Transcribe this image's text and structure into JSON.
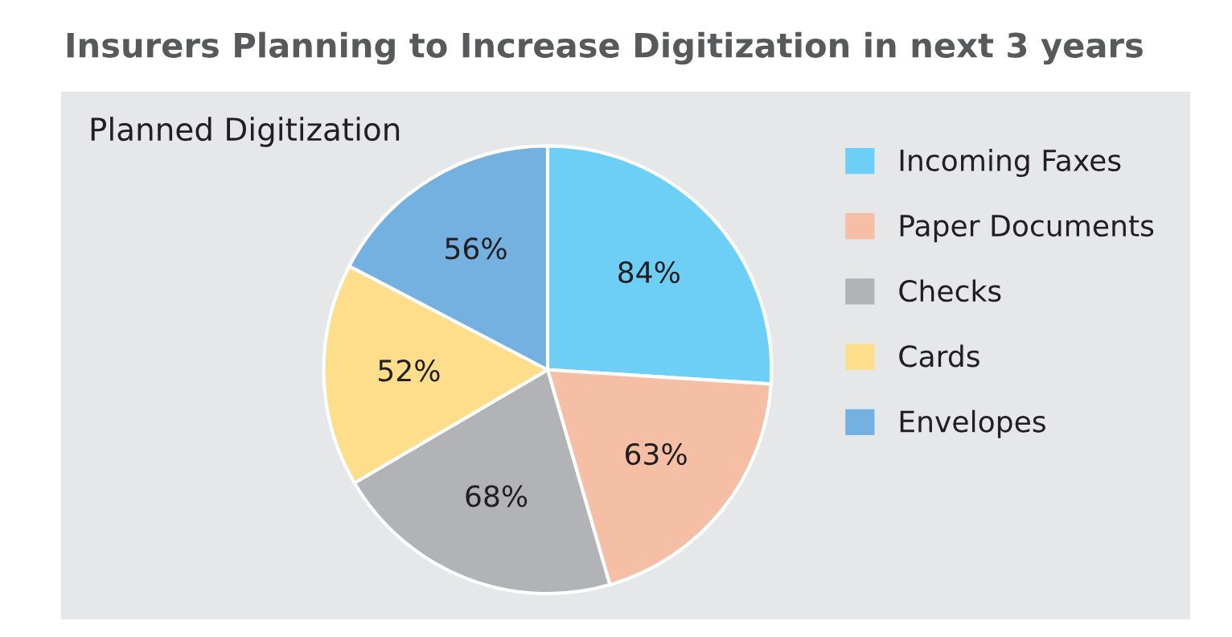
{
  "chart_data": {
    "type": "pie",
    "title": "Insurers Planning to Increase Digitization in next 3 years",
    "subtitle": "Planned Digitization",
    "categories": [
      "Incoming Faxes",
      "Paper Documents",
      "Checks",
      "Cards",
      "Envelopes"
    ],
    "values": [
      84,
      63,
      68,
      52,
      56
    ],
    "value_labels": [
      "84%",
      "63%",
      "68%",
      "52%",
      "56%"
    ],
    "colors": [
      "#6dcff6",
      "#f5bfa6",
      "#b1b3b6",
      "#fedd8b",
      "#74b0e0"
    ],
    "legend": "right"
  }
}
